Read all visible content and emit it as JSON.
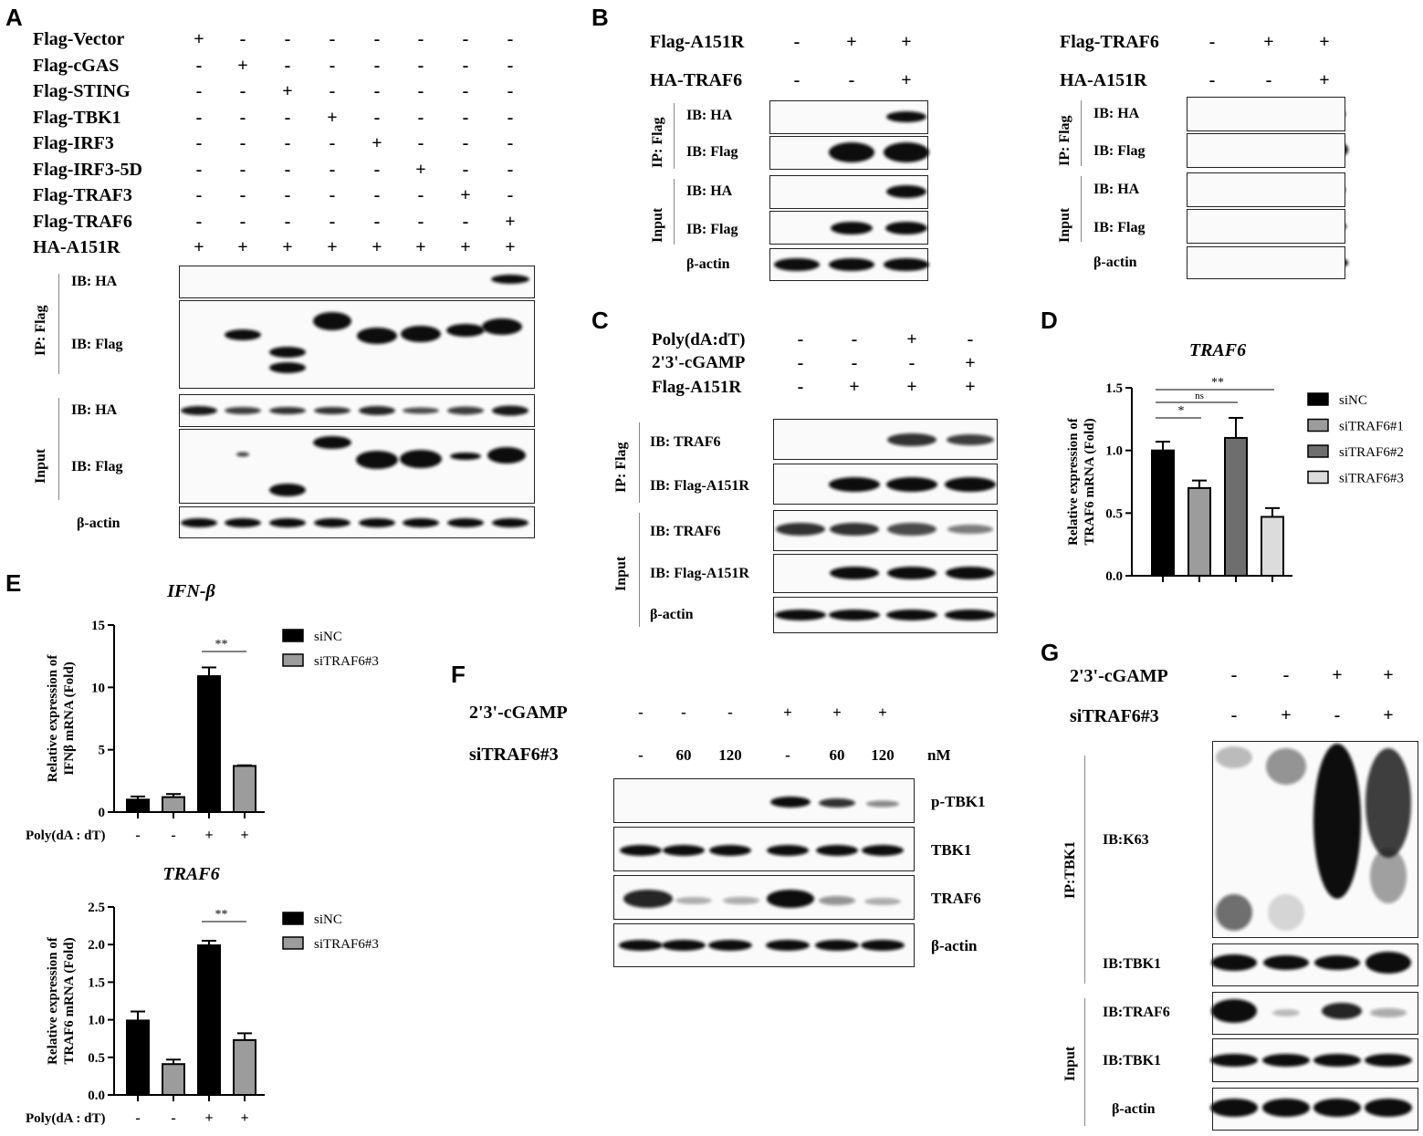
{
  "panel_letters": {
    "A": "A",
    "B": "B",
    "C": "C",
    "D": "D",
    "E": "E",
    "F": "F",
    "G": "G"
  },
  "plus": "+",
  "minus": "-",
  "panelA": {
    "rows": [
      {
        "label": "Flag-Vector",
        "signs": [
          "+",
          "-",
          "-",
          "-",
          "-",
          "-",
          "-",
          "-"
        ]
      },
      {
        "label": "Flag-cGAS",
        "signs": [
          "-",
          "+",
          "-",
          "-",
          "-",
          "-",
          "-",
          "-"
        ]
      },
      {
        "label": "Flag-STING",
        "signs": [
          "-",
          "-",
          "+",
          "-",
          "-",
          "-",
          "-",
          "-"
        ]
      },
      {
        "label": "Flag-TBK1",
        "signs": [
          "-",
          "-",
          "-",
          "+",
          "-",
          "-",
          "-",
          "-"
        ]
      },
      {
        "label": "Flag-IRF3",
        "signs": [
          "-",
          "-",
          "-",
          "-",
          "+",
          "-",
          "-",
          "-"
        ]
      },
      {
        "label": "Flag-IRF3-5D",
        "signs": [
          "-",
          "-",
          "-",
          "-",
          "-",
          "+",
          "-",
          "-"
        ]
      },
      {
        "label": "Flag-TRAF3",
        "signs": [
          "-",
          "-",
          "-",
          "-",
          "-",
          "-",
          "+",
          "-"
        ]
      },
      {
        "label": "Flag-TRAF6",
        "signs": [
          "-",
          "-",
          "-",
          "-",
          "-",
          "-",
          "-",
          "+"
        ]
      },
      {
        "label": "HA-A151R",
        "signs": [
          "+",
          "+",
          "+",
          "+",
          "+",
          "+",
          "+",
          "+"
        ]
      }
    ],
    "group_ip": "IP: Flag",
    "group_input": "Input",
    "blots": [
      "IB:  HA",
      "IB:  Flag",
      "IB:  HA",
      "IB:  Flag",
      "β-actin"
    ]
  },
  "panelB1": {
    "rows": [
      {
        "label": "Flag-A151R",
        "signs": [
          "-",
          "+",
          "+"
        ]
      },
      {
        "label": "HA-TRAF6",
        "signs": [
          "-",
          "-",
          "+"
        ]
      }
    ],
    "group_ip": "IP: Flag",
    "group_input": "Input",
    "blots": [
      "IB:  HA",
      "IB:  Flag",
      "IB:  HA",
      "IB:  Flag",
      "β-actin"
    ]
  },
  "panelB2": {
    "rows": [
      {
        "label": "Flag-TRAF6",
        "signs": [
          "-",
          "+",
          "+"
        ]
      },
      {
        "label": "HA-A151R",
        "signs": [
          "-",
          "-",
          "+"
        ]
      }
    ],
    "group_ip": "IP: Flag",
    "group_input": "Input",
    "blots": [
      "IB:  HA",
      "IB:  Flag",
      "IB:  HA",
      "IB:  Flag",
      "β-actin"
    ]
  },
  "panelC": {
    "rows": [
      {
        "label": "Poly(dA:dT)",
        "signs": [
          "-",
          "-",
          "+",
          "-"
        ]
      },
      {
        "label": "2'3'-cGAMP",
        "signs": [
          "-",
          "-",
          "-",
          "+"
        ]
      },
      {
        "label": "Flag-A151R",
        "signs": [
          "-",
          "+",
          "+",
          "+"
        ]
      }
    ],
    "group_ip": "IP: Flag",
    "group_input": "Input",
    "blots": [
      "IB: TRAF6",
      "IB: Flag-A151R",
      "IB: TRAF6",
      "IB: Flag-A151R",
      "β-actin"
    ]
  },
  "panelF": {
    "rows": [
      {
        "label": "2'3'-cGAMP",
        "signs": [
          "-",
          "-",
          "-",
          "+",
          "+",
          "+"
        ]
      },
      {
        "label": "siTRAF6#3",
        "signs": [
          "-",
          "60",
          "120",
          "-",
          "60",
          "120"
        ]
      }
    ],
    "unit": "nM",
    "blots": [
      "p-TBK1",
      "TBK1",
      "TRAF6",
      "β-actin"
    ]
  },
  "panelG": {
    "rows": [
      {
        "label": "2'3'-cGAMP",
        "signs": [
          "-",
          "-",
          "+",
          "+"
        ]
      },
      {
        "label": "siTRAF6#3",
        "signs": [
          "-",
          "+",
          "-",
          "+"
        ]
      }
    ],
    "group_ip": "IP:TBK1",
    "group_input": "Input",
    "blots": [
      "IB:K63",
      "IB:TBK1",
      "IB:TRAF6",
      "IB:TBK1",
      "β-actin"
    ]
  },
  "chart_data": [
    {
      "id": "D",
      "type": "bar",
      "title": "TRAF6",
      "ylabel": "Relative expression of TRAF6 mRNA (Fold)",
      "ylim": [
        0,
        1.5
      ],
      "yticks": [
        "0.0",
        "0.5",
        "1.0",
        "1.5"
      ],
      "categories": [
        "siNC",
        "siTRAF6#1",
        "siTRAF6#2",
        "siTRAF6#3"
      ],
      "values": [
        1.0,
        0.7,
        1.1,
        0.47
      ],
      "errors": [
        0.07,
        0.06,
        0.16,
        0.07
      ],
      "colors": [
        "#000000",
        "#9c9c9c",
        "#6e6e6e",
        "#dcdcdc"
      ],
      "legend": [
        "siNC",
        "siTRAF6#1",
        "siTRAF6#2",
        "siTRAF6#3"
      ],
      "significance": [
        {
          "from": 0,
          "to": 1,
          "label": "*"
        },
        {
          "from": 0,
          "to": 2,
          "label": "ns"
        },
        {
          "from": 0,
          "to": 3,
          "label": "**"
        }
      ]
    },
    {
      "id": "E1",
      "type": "bar",
      "title": "IFN-β",
      "ylabel": "Relative expression of IFNβ mRNA (Fold)",
      "ylim": [
        0,
        15
      ],
      "yticks": [
        "0",
        "5",
        "10",
        "15"
      ],
      "xlabel": "Poly(dA : dT)",
      "x_signs": [
        "-",
        "-",
        "+",
        "+"
      ],
      "values": [
        1.0,
        1.2,
        10.9,
        3.7
      ],
      "errors": [
        0.25,
        0.25,
        0.7,
        0.05
      ],
      "colors": [
        "#000000",
        "#9c9c9c",
        "#000000",
        "#9c9c9c"
      ],
      "series": [
        {
          "name": "siNC"
        },
        {
          "name": "siTRAF6#3"
        }
      ],
      "significance": [
        {
          "from": 2,
          "to": 3,
          "label": "**"
        }
      ]
    },
    {
      "id": "E2",
      "type": "bar",
      "title": "TRAF6",
      "ylabel": "Relative expression of TRAF6 mRNA (Fold)",
      "ylim": [
        0,
        2.5
      ],
      "yticks": [
        "0.0",
        "0.5",
        "1.0",
        "1.5",
        "2.0",
        "2.5"
      ],
      "xlabel": "Poly(dA : dT)",
      "x_signs": [
        "-",
        "-",
        "+",
        "+"
      ],
      "values": [
        0.99,
        0.41,
        1.99,
        0.73
      ],
      "errors": [
        0.12,
        0.06,
        0.06,
        0.09
      ],
      "colors": [
        "#000000",
        "#9c9c9c",
        "#000000",
        "#9c9c9c"
      ],
      "series": [
        {
          "name": "siNC"
        },
        {
          "name": "siTRAF6#3"
        }
      ],
      "significance": [
        {
          "from": 2,
          "to": 3,
          "label": "**"
        }
      ]
    }
  ]
}
